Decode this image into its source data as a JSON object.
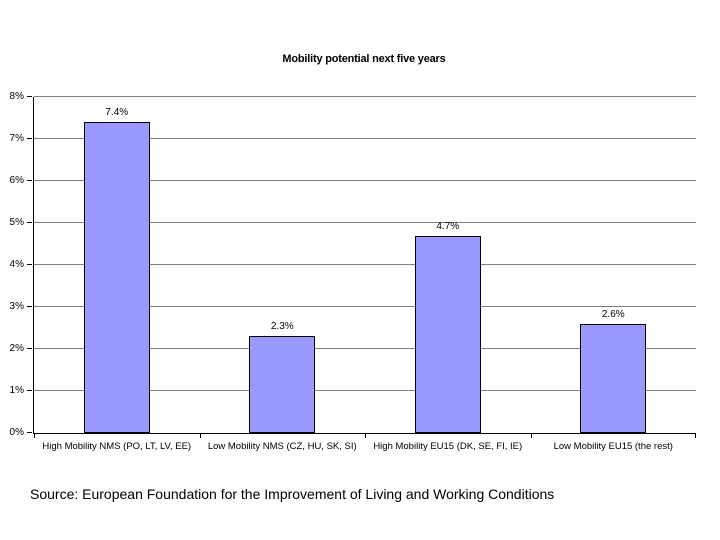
{
  "chart_data": {
    "type": "bar",
    "title": "Mobility potential next five years",
    "categories": [
      "High Mobility NMS (PO, LT, LV, EE)",
      "Low Mobility NMS (CZ, HU, SK, SI)",
      "High Mobility EU15 (DK, SE, FI, IE)",
      "Low Mobility EU15 (the rest)"
    ],
    "values": [
      7.4,
      2.3,
      4.7,
      2.6
    ],
    "data_labels": [
      "7.4%",
      "2.3%",
      "4.7%",
      "2.6%"
    ],
    "xlabel": "",
    "ylabel": "",
    "ylim": [
      0,
      8
    ],
    "ytick_step": 1,
    "ytick_labels": [
      "0%",
      "1%",
      "2%",
      "3%",
      "4%",
      "5%",
      "6%",
      "7%",
      "8%"
    ],
    "grid": true,
    "legend": false,
    "colors": {
      "bar_fill": "#9999FF",
      "bar_border": "#000000",
      "gridline": "#808080",
      "axis": "#000000",
      "background": "#FFFFFF"
    }
  },
  "source_note": "Source: European Foundation for the Improvement of Living and Working Conditions"
}
